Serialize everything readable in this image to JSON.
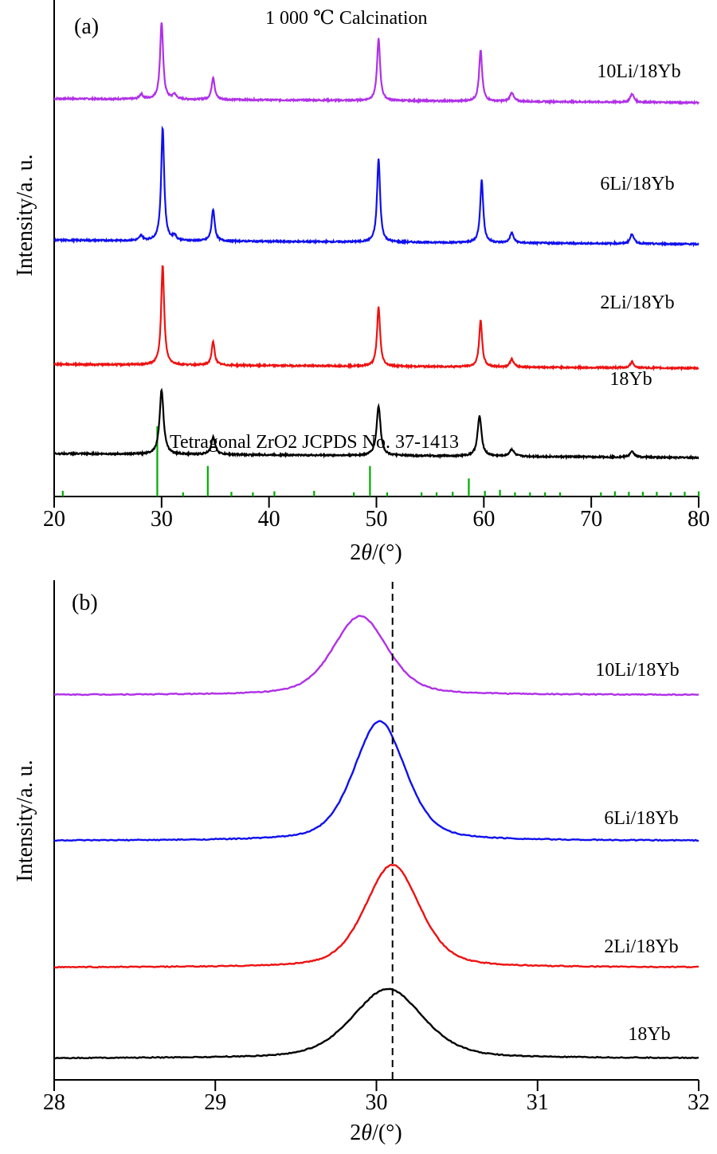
{
  "chart_data": [
    {
      "id": "a",
      "type": "line",
      "panel_label": "(a)",
      "title": "1 000 ℃  Calcination",
      "xlabel": "2θ/(°)",
      "ylabel": "Intensity/a. u.",
      "xlim": [
        20,
        80
      ],
      "xticks": [
        20,
        30,
        40,
        50,
        60,
        70,
        80
      ],
      "y_units": "arbitrary (stacked, offset)",
      "grid": false,
      "legend": "inline labels at right of each trace",
      "series": [
        {
          "name": "10Li/18Yb",
          "color": "#b030e8",
          "baseline": 0.8,
          "peaks": [
            {
              "x": 28.1,
              "h": 0.01,
              "w": 0.18
            },
            {
              "x": 30.0,
              "h": 0.155,
              "w": 0.17
            },
            {
              "x": 31.2,
              "h": 0.01,
              "w": 0.18
            },
            {
              "x": 34.8,
              "h": 0.045,
              "w": 0.17
            },
            {
              "x": 50.2,
              "h": 0.125,
              "w": 0.17
            },
            {
              "x": 59.7,
              "h": 0.102,
              "w": 0.17
            },
            {
              "x": 62.6,
              "h": 0.018,
              "w": 0.2
            },
            {
              "x": 73.8,
              "h": 0.017,
              "w": 0.2
            }
          ]
        },
        {
          "name": "6Li/18Yb",
          "color": "#1010ee",
          "baseline": 0.515,
          "peaks": [
            {
              "x": 28.1,
              "h": 0.01,
              "w": 0.18
            },
            {
              "x": 30.1,
              "h": 0.228,
              "w": 0.17
            },
            {
              "x": 31.2,
              "h": 0.01,
              "w": 0.18
            },
            {
              "x": 34.8,
              "h": 0.064,
              "w": 0.17
            },
            {
              "x": 50.2,
              "h": 0.168,
              "w": 0.17
            },
            {
              "x": 59.8,
              "h": 0.126,
              "w": 0.17
            },
            {
              "x": 62.6,
              "h": 0.02,
              "w": 0.2
            },
            {
              "x": 73.8,
              "h": 0.02,
              "w": 0.2
            }
          ]
        },
        {
          "name": "2Li/18Yb",
          "color": "#ee1111",
          "baseline": 0.265,
          "peaks": [
            {
              "x": 30.1,
              "h": 0.2,
              "w": 0.17
            },
            {
              "x": 34.8,
              "h": 0.047,
              "w": 0.17
            },
            {
              "x": 50.2,
              "h": 0.12,
              "w": 0.17
            },
            {
              "x": 59.7,
              "h": 0.093,
              "w": 0.17
            },
            {
              "x": 62.6,
              "h": 0.016,
              "w": 0.2
            },
            {
              "x": 73.8,
              "h": 0.012,
              "w": 0.2
            }
          ]
        },
        {
          "name": "18Yb",
          "color": "#000000",
          "baseline": 0.085,
          "peaks": [
            {
              "x": 30.0,
              "h": 0.13,
              "w": 0.22
            },
            {
              "x": 34.8,
              "h": 0.035,
              "w": 0.22
            },
            {
              "x": 50.2,
              "h": 0.1,
              "w": 0.22
            },
            {
              "x": 59.6,
              "h": 0.081,
              "w": 0.22
            },
            {
              "x": 62.6,
              "h": 0.014,
              "w": 0.25
            },
            {
              "x": 73.8,
              "h": 0.011,
              "w": 0.25
            }
          ]
        }
      ],
      "reference": {
        "name": "Tetragonal ZrO2  JCPDS No. 37-1413",
        "color": "#00aa00",
        "lines": [
          {
            "x": 20.8,
            "h": 0.005
          },
          {
            "x": 29.6,
            "h": 0.135
          },
          {
            "x": 32.0,
            "h": 0.002
          },
          {
            "x": 34.3,
            "h": 0.055
          },
          {
            "x": 36.5,
            "h": 0.003
          },
          {
            "x": 38.5,
            "h": 0.002
          },
          {
            "x": 40.5,
            "h": 0.004
          },
          {
            "x": 44.2,
            "h": 0.005
          },
          {
            "x": 47.9,
            "h": 0.002
          },
          {
            "x": 49.4,
            "h": 0.055
          },
          {
            "x": 51.0,
            "h": 0.002
          },
          {
            "x": 54.2,
            "h": 0.002
          },
          {
            "x": 55.6,
            "h": 0.002
          },
          {
            "x": 57.1,
            "h": 0.003
          },
          {
            "x": 58.6,
            "h": 0.03
          },
          {
            "x": 60.1,
            "h": 0.005
          },
          {
            "x": 61.5,
            "h": 0.007
          },
          {
            "x": 62.9,
            "h": 0.002
          },
          {
            "x": 64.3,
            "h": 0.002
          },
          {
            "x": 65.7,
            "h": 0.002
          },
          {
            "x": 67.1,
            "h": 0.002
          },
          {
            "x": 70.9,
            "h": 0.002
          },
          {
            "x": 72.2,
            "h": 0.004
          },
          {
            "x": 73.5,
            "h": 0.003
          },
          {
            "x": 74.8,
            "h": 0.003
          },
          {
            "x": 76.1,
            "h": 0.003
          },
          {
            "x": 77.4,
            "h": 0.002
          },
          {
            "x": 78.7,
            "h": 0.003
          },
          {
            "x": 80.0,
            "h": 0.004
          }
        ]
      }
    },
    {
      "id": "b",
      "type": "line",
      "panel_label": "(b)",
      "xlabel": "2θ/(°)",
      "ylabel": "Intensity/a. u.",
      "xlim": [
        28,
        32
      ],
      "xticks": [
        28,
        29,
        30,
        31,
        32
      ],
      "y_units": "arbitrary (stacked, offset)",
      "grid": false,
      "legend": "inline labels at right of each trace",
      "reference_line": {
        "x": 30.1,
        "style": "dashed",
        "color": "#000000"
      },
      "series": [
        {
          "name": "10Li/18Yb",
          "color": "#b030e8",
          "baseline": 0.76,
          "peak_x": 29.9,
          "peak_h": 0.165,
          "width": 0.2
        },
        {
          "name": "6Li/18Yb",
          "color": "#1010ee",
          "baseline": 0.455,
          "peak_x": 30.02,
          "peak_h": 0.25,
          "width": 0.19
        },
        {
          "name": "2Li/18Yb",
          "color": "#ee1111",
          "baseline": 0.19,
          "peak_x": 30.1,
          "peak_h": 0.215,
          "width": 0.2
        },
        {
          "name": "18Yb",
          "color": "#000000",
          "baseline": 0.0,
          "peak_x": 30.07,
          "peak_h": 0.145,
          "width": 0.26
        }
      ]
    }
  ]
}
